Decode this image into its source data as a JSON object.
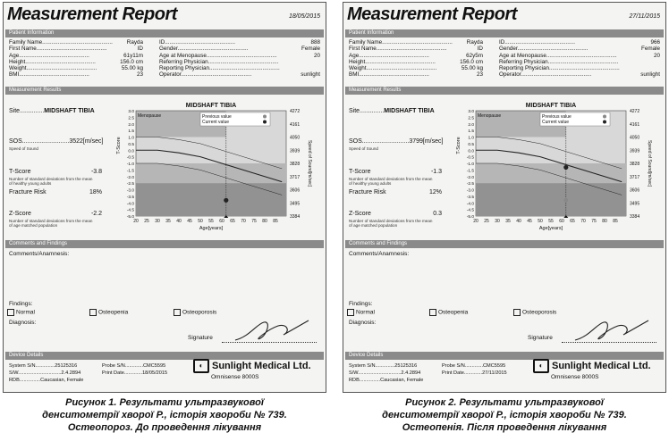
{
  "reports": [
    {
      "title": "Measurement Report",
      "date": "18/05/2015",
      "patient_info_header": "Patient Information",
      "left_fields": [
        {
          "label": "Family Name",
          "value": "Rayda"
        },
        {
          "label": "First Name",
          "value": "ID"
        },
        {
          "label": "Age",
          "value": "61y11m"
        },
        {
          "label": "Height",
          "value": "156.0 cm"
        },
        {
          "label": "Weight",
          "value": "55.00 kg"
        },
        {
          "label": "BMI",
          "value": "23"
        }
      ],
      "right_fields": [
        {
          "label": "ID",
          "value": "888"
        },
        {
          "label": "Gender",
          "value": "Female"
        },
        {
          "label": "Age at Menopause",
          "value": "20"
        },
        {
          "label": "Referring Physician",
          "value": ""
        },
        {
          "label": "Reporting Physician",
          "value": ""
        },
        {
          "label": "Operator",
          "value": "sunlight"
        }
      ],
      "results_header": "Measurement Results",
      "site_label": "Site",
      "site_value": "MIDSHAFT TIBIA",
      "sos_label": "SOS",
      "sos_value": "3522[m/sec]",
      "sos_sub": "Speed of Sound",
      "tscore_label": "T-Score",
      "tscore_value": "-3.8",
      "tscore_sub": "Number of standard deviations from the mean of healthy young adults",
      "fracture_label": "Fracture Risk",
      "fracture_value": "18%",
      "zscore_label": "Z-Score",
      "zscore_value": "-2.2",
      "zscore_sub": "Number of standard deviations from the mean of age matched population",
      "comments_header": "Comments and Findings",
      "comments_label": "Comments/Anamnesis:",
      "findings_label": "Findings:",
      "normal_label": "Normal",
      "osteopenia_label": "Osteopenia",
      "osteoporosis_label": "Osteoporosis",
      "diagnosis_label": "Diagnosis:",
      "signature_label": "Signature",
      "device_header": "Device Details",
      "system_sn": "System S/N..............25125316",
      "sw": "S/W...............................2.4.2894",
      "rdb": "RDB...............Caucasian, Female",
      "probe_sn": "Probe S/N.............CMC5595",
      "print_date": "Print Date.............18/05/2015",
      "company": "Sunlight Medical Ltd.",
      "model": "Omnisense 8000S",
      "caption": [
        "Рисунок 1.  Результати ультразвукової",
        "денситометрії хворої Р., історія хвороби № 739.",
        "Остеопороз. До проведення лікування"
      ]
    },
    {
      "title": "Measurement Report",
      "date": "27/11/2015",
      "patient_info_header": "Patient Information",
      "left_fields": [
        {
          "label": "Family Name",
          "value": "Rayda"
        },
        {
          "label": "First Name",
          "value": "ID"
        },
        {
          "label": "Age",
          "value": "62y5m"
        },
        {
          "label": "Height",
          "value": "156.0 cm"
        },
        {
          "label": "Weight",
          "value": "55.00 kg"
        },
        {
          "label": "BMI",
          "value": "23"
        }
      ],
      "right_fields": [
        {
          "label": "ID",
          "value": "966"
        },
        {
          "label": "Gender",
          "value": "Female"
        },
        {
          "label": "Age at Menopause",
          "value": "20"
        },
        {
          "label": "Referring Physician",
          "value": ""
        },
        {
          "label": "Reporting Physician",
          "value": ""
        },
        {
          "label": "Operator",
          "value": "sunlight"
        }
      ],
      "results_header": "Measurement Results",
      "site_label": "Site",
      "site_value": "MIDSHAFT TIBIA",
      "sos_label": "SOS",
      "sos_value": "3799[m/sec]",
      "sos_sub": "Speed of Sound",
      "tscore_label": "T-Score",
      "tscore_value": "-1.3",
      "tscore_sub": "Number of standard deviations from the mean of healthy young adults",
      "fracture_label": "Fracture Risk",
      "fracture_value": "12%",
      "zscore_label": "Z-Score",
      "zscore_value": "0.3",
      "zscore_sub": "Number of standard deviations from the mean of age matched population",
      "comments_header": "Comments and Findings",
      "comments_label": "Comments/Anamnesis:",
      "findings_label": "Findings:",
      "normal_label": "Normal",
      "osteopenia_label": "Osteopenia",
      "osteoporosis_label": "Osteoporosis",
      "diagnosis_label": "Diagnosis:",
      "signature_label": "Signature",
      "device_header": "Device Details",
      "system_sn": "System S/N..............25125316",
      "sw": "S/W...............................2.4.2894",
      "rdb": "RDB...............Caucasian, Female",
      "probe_sn": "Probe S/N.............CMC5595",
      "print_date": "Print Date.............27/11/2015",
      "company": "Sunlight Medical Ltd.",
      "model": "Omnisense 8000S",
      "caption": [
        "Рисунок 2.  Результати ультразвукової",
        "денситометрії хворої Р., історія хвороби № 739.",
        "Остеопенія. Після проведення лікування"
      ]
    }
  ],
  "chart_data": [
    {
      "type": "line",
      "title": "MIDSHAFT TIBIA",
      "xlabel": "Age[years]",
      "ylabel": "T-Score",
      "y2label": "Speed of Sound[m/sec]",
      "x_ticks": [
        20,
        25,
        30,
        35,
        40,
        45,
        50,
        55,
        60,
        65,
        70,
        75,
        80,
        85
      ],
      "y_ticks": [
        3.0,
        2.5,
        2.0,
        1.5,
        1.0,
        0.5,
        0.0,
        -0.5,
        -1.0,
        -1.5,
        -2.0,
        -2.5,
        -3.0,
        -3.5,
        -4.0,
        -4.5,
        -5.0
      ],
      "y2_ticks": [
        4272,
        4161,
        4050,
        3939,
        3828,
        3717,
        3606,
        3495,
        3384
      ],
      "xlim": [
        20,
        90
      ],
      "ylim": [
        -5.0,
        3.0
      ],
      "menopause_label": "Menopause",
      "legend": [
        "Previous value",
        "Current value"
      ],
      "current_point": {
        "age": 62,
        "tscore": -3.8
      },
      "series": [
        {
          "x": [
            20,
            30,
            40,
            50,
            60,
            70,
            80,
            88
          ],
          "y": [
            0.0,
            0.0,
            -0.2,
            -0.5,
            -1.0,
            -1.5,
            -2.0,
            -2.4
          ]
        }
      ]
    },
    {
      "type": "line",
      "title": "MIDSHAFT TIBIA",
      "xlabel": "Age[years]",
      "ylabel": "T-Score",
      "y2label": "Speed of Sound[m/sec]",
      "x_ticks": [
        20,
        25,
        30,
        35,
        40,
        45,
        50,
        55,
        60,
        65,
        70,
        75,
        80,
        85
      ],
      "y_ticks": [
        3.0,
        2.5,
        2.0,
        1.5,
        1.0,
        0.5,
        0.0,
        -0.5,
        -1.0,
        -1.5,
        -2.0,
        -2.5,
        -3.0,
        -3.5,
        -4.0,
        -4.5,
        -5.0
      ],
      "y2_ticks": [
        4272,
        4161,
        4050,
        3939,
        3828,
        3717,
        3606,
        3495,
        3384
      ],
      "xlim": [
        20,
        90
      ],
      "ylim": [
        -5.0,
        3.0
      ],
      "menopause_label": "Menopause",
      "legend": [
        "Previous value",
        "Current value"
      ],
      "previous_point": {
        "age": 62,
        "tscore": -3.8
      },
      "current_point": {
        "age": 62,
        "tscore": -1.3
      },
      "series": [
        {
          "x": [
            20,
            30,
            40,
            50,
            60,
            70,
            80,
            88
          ],
          "y": [
            0.0,
            0.0,
            -0.2,
            -0.5,
            -1.0,
            -1.5,
            -2.0,
            -2.4
          ]
        }
      ]
    }
  ]
}
